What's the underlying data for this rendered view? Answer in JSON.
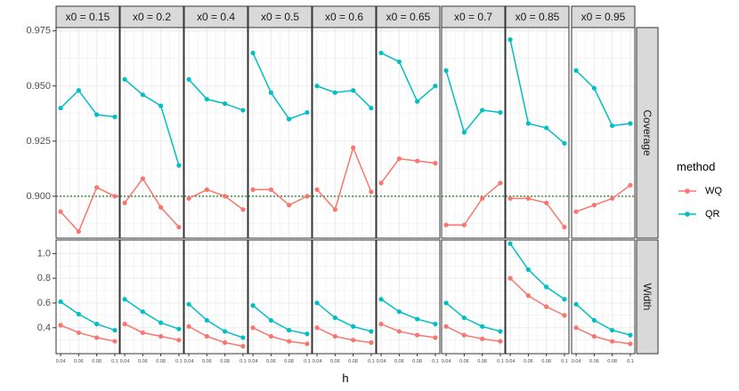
{
  "chart_data": {
    "type": "line",
    "facet_cols_label": "x0",
    "columns": [
      "x0 = 0.15",
      "x0 = 0.2",
      "x0 = 0.4",
      "x0 = 0.5",
      "x0 = 0.6",
      "x0 = 0.65",
      "x0 = 0.7",
      "x0 = 0.85",
      "x0 = 0.95"
    ],
    "rows": [
      "Coverage",
      "Width"
    ],
    "x": [
      0.04,
      0.06,
      0.08,
      0.1
    ],
    "x_tick_labels": [
      "0.04",
      "0.06",
      "0.08",
      "0.1"
    ],
    "xlabel": "h",
    "xlim": [
      0.035,
      0.105
    ],
    "y_scales": {
      "Coverage": {
        "ylim": [
          0.881,
          0.9765
        ],
        "ticks": [
          0.9,
          0.925,
          0.95,
          0.975
        ],
        "tick_labels": [
          "0.900",
          "0.925",
          "0.950",
          "0.975"
        ],
        "reference_line": 0.9
      },
      "Width": {
        "ylim": [
          0.19,
          1.11
        ],
        "ticks": [
          0.4,
          0.6,
          0.8,
          1.0
        ],
        "tick_labels": [
          "0.4",
          "0.6",
          "0.8",
          "1.0"
        ]
      }
    },
    "legend": {
      "title": "method",
      "position": "right",
      "entries": [
        "WQ",
        "QR"
      ]
    },
    "colors": {
      "WQ": "#F8766D",
      "QR": "#00BFC4",
      "reference": "#1a7a1a",
      "panel_bg": "#ffffff",
      "grid": "#ebebeb",
      "strip_bg": "#d9d9d9"
    },
    "series": {
      "Coverage": {
        "WQ": [
          [
            0.893,
            0.884,
            0.904,
            0.9
          ],
          [
            0.897,
            0.908,
            0.895,
            0.886
          ],
          [
            0.899,
            0.903,
            0.9,
            0.894
          ],
          [
            0.903,
            0.903,
            0.896,
            0.9
          ],
          [
            0.903,
            0.894,
            0.922,
            0.902
          ],
          [
            0.906,
            0.917,
            0.916,
            0.915
          ],
          [
            0.887,
            0.887,
            0.899,
            0.906
          ],
          [
            0.899,
            0.899,
            0.897,
            0.886
          ],
          [
            0.893,
            0.896,
            0.899,
            0.905
          ]
        ],
        "QR": [
          [
            0.94,
            0.948,
            0.937,
            0.936
          ],
          [
            0.953,
            0.946,
            0.941,
            0.914
          ],
          [
            0.953,
            0.944,
            0.942,
            0.939
          ],
          [
            0.965,
            0.947,
            0.935,
            0.938
          ],
          [
            0.95,
            0.947,
            0.948,
            0.94
          ],
          [
            0.965,
            0.961,
            0.943,
            0.95
          ],
          [
            0.957,
            0.929,
            0.939,
            0.938
          ],
          [
            0.971,
            0.933,
            0.931,
            0.924
          ],
          [
            0.957,
            0.949,
            0.932,
            0.933
          ]
        ]
      },
      "Width": {
        "WQ": [
          [
            0.42,
            0.36,
            0.32,
            0.29
          ],
          [
            0.43,
            0.36,
            0.33,
            0.3
          ],
          [
            0.41,
            0.33,
            0.28,
            0.25
          ],
          [
            0.4,
            0.33,
            0.29,
            0.27
          ],
          [
            0.4,
            0.33,
            0.3,
            0.28
          ],
          [
            0.43,
            0.37,
            0.34,
            0.32
          ],
          [
            0.41,
            0.34,
            0.31,
            0.29
          ],
          [
            0.8,
            0.66,
            0.57,
            0.5
          ],
          [
            0.4,
            0.33,
            0.29,
            0.27
          ]
        ],
        "QR": [
          [
            0.61,
            0.51,
            0.43,
            0.38
          ],
          [
            0.63,
            0.53,
            0.44,
            0.39
          ],
          [
            0.59,
            0.46,
            0.37,
            0.32
          ],
          [
            0.58,
            0.46,
            0.38,
            0.35
          ],
          [
            0.6,
            0.48,
            0.41,
            0.37
          ],
          [
            0.63,
            0.53,
            0.47,
            0.43
          ],
          [
            0.6,
            0.48,
            0.41,
            0.37
          ],
          [
            1.08,
            0.87,
            0.73,
            0.63
          ],
          [
            0.59,
            0.46,
            0.38,
            0.34
          ]
        ]
      }
    }
  }
}
